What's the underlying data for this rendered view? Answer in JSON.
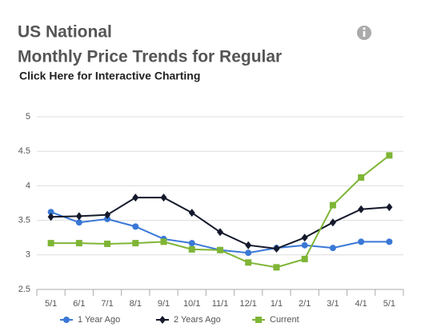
{
  "chart_data": {
    "type": "line",
    "title": "US National",
    "subtitle": "Monthly Price Trends for Regular",
    "link": "Click Here for Interactive Charting",
    "categories": [
      "5/1",
      "6/1",
      "7/1",
      "8/1",
      "9/1",
      "10/1",
      "11/1",
      "12/1",
      "1/1",
      "2/1",
      "3/1",
      "4/1",
      "5/1"
    ],
    "series": [
      {
        "name": "1 Year Ago",
        "color": "#3a78d6",
        "marker": "circle",
        "values": [
          3.62,
          3.47,
          3.52,
          3.41,
          3.23,
          3.17,
          3.07,
          3.03,
          3.1,
          3.14,
          3.1,
          3.19,
          3.19
        ]
      },
      {
        "name": "2 Years Ago",
        "color": "#14192b",
        "marker": "diamond",
        "values": [
          3.55,
          3.56,
          3.58,
          3.83,
          3.83,
          3.61,
          3.33,
          3.14,
          3.09,
          3.25,
          3.47,
          3.66,
          3.69
        ]
      },
      {
        "name": "Current",
        "color": "#7fb535",
        "marker": "square",
        "values": [
          3.17,
          3.17,
          3.16,
          3.17,
          3.19,
          3.08,
          3.07,
          2.89,
          2.82,
          2.94,
          3.72,
          4.12,
          4.44
        ]
      }
    ],
    "ylim": [
      2.5,
      5
    ],
    "yticks": [
      2.5,
      3,
      3.5,
      4,
      4.5,
      5
    ],
    "grid": true,
    "legend": "bottom"
  }
}
